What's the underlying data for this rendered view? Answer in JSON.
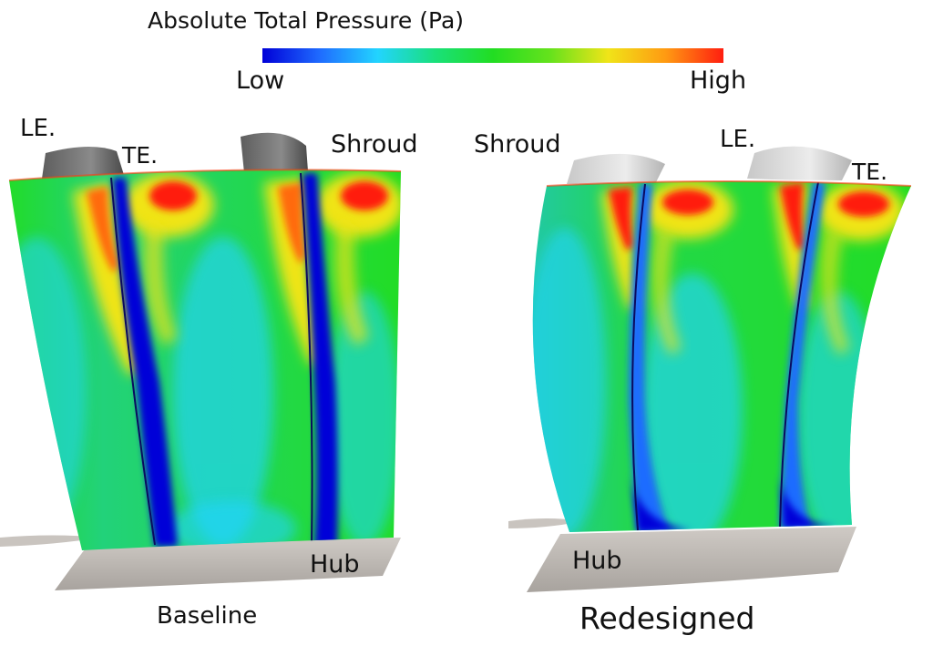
{
  "legend": {
    "title": "Absolute Total Pressure (Pa)",
    "low_label": "Low",
    "high_label": "High",
    "colormap": [
      "#0000d8",
      "#1f6cff",
      "#22d4ff",
      "#19e07a",
      "#22dd22",
      "#66e21c",
      "#f0e418",
      "#ff9a12",
      "#ff1e10"
    ]
  },
  "panels": [
    {
      "id": "baseline",
      "caption": "Baseline",
      "labels": {
        "le": "LE.",
        "te": "TE.",
        "shroud": "Shroud",
        "hub": "Hub"
      },
      "blade_color": "#7a7a7a"
    },
    {
      "id": "redesigned",
      "caption": "Redesigned",
      "labels": {
        "le": "LE.",
        "te": "TE.",
        "shroud": "Shroud",
        "hub": "Hub"
      },
      "blade_color": "#dcdcdc"
    }
  ],
  "colors": {
    "hub": "#b8b3ae",
    "field_base": "#22dd22"
  }
}
